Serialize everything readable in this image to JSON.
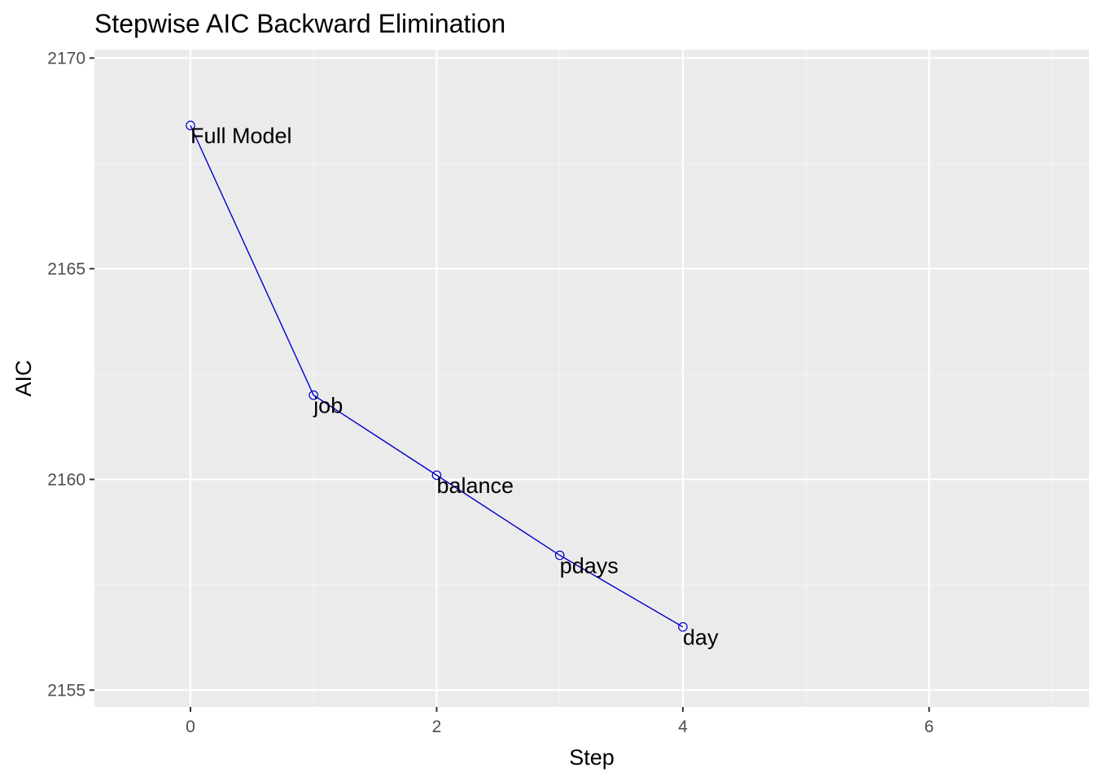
{
  "chart_data": {
    "type": "line",
    "title": "Stepwise AIC Backward Elimination",
    "xlabel": "Step",
    "ylabel": "AIC",
    "xlim": [
      -0.78,
      7.3
    ],
    "ylim": [
      2154.6,
      2170.2
    ],
    "x_ticks": [
      0,
      2,
      4,
      6
    ],
    "y_ticks": [
      2155,
      2160,
      2165,
      2170
    ],
    "grid": true,
    "legend": "none",
    "series": [
      {
        "points": [
          {
            "x": 0,
            "y": 2168.4,
            "label": "Full Model"
          },
          {
            "x": 1,
            "y": 2162.0,
            "label": "job"
          },
          {
            "x": 2,
            "y": 2160.1,
            "label": "balance"
          },
          {
            "x": 3,
            "y": 2158.2,
            "label": "pdays"
          },
          {
            "x": 4,
            "y": 2156.5,
            "label": "day"
          }
        ]
      }
    ],
    "colors": {
      "line": "#0000cd",
      "panel": "#ebebeb",
      "grid_major": "#ffffff",
      "grid_minor": "#f5f5f5"
    }
  }
}
